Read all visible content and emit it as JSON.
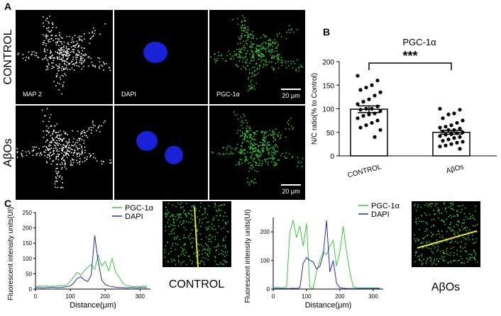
{
  "panels": {
    "a": "A",
    "b": "B",
    "c": "C"
  },
  "microscopy": {
    "rows": [
      "CONTROL",
      "AβOs"
    ],
    "channels": [
      "MAP 2",
      "DAPI",
      "PGC-1α"
    ],
    "scale_bar": "20 μm"
  },
  "profile_images": [
    "CONTROL",
    "AβOs"
  ],
  "chart_data": [
    {
      "type": "bar",
      "title": "PGC-1α",
      "y_label": "N/C ratio(% to Control)",
      "categories": [
        "CONTROL",
        "AβOs"
      ],
      "values": [
        99,
        50
      ],
      "errors": [
        7,
        4
      ],
      "points": [
        [
          170,
          160,
          150,
          145,
          140,
          135,
          128,
          120,
          115,
          110,
          105,
          100,
          100,
          98,
          95,
          90,
          88,
          85,
          80,
          75,
          70,
          65,
          60,
          55,
          40
        ],
        [
          100,
          98,
          90,
          88,
          80,
          75,
          70,
          65,
          62,
          60,
          58,
          55,
          55,
          52,
          50,
          48,
          46,
          45,
          42,
          40,
          38,
          35,
          32,
          30,
          28,
          25,
          22,
          20,
          15
        ]
      ],
      "annotation": "***",
      "color": "#000000",
      "ylim": [
        0,
        200
      ],
      "yticks": [
        0,
        50,
        100,
        150,
        200
      ]
    },
    {
      "type": "line",
      "x_label": "Distance(μm)",
      "y_label": "Fluorescent intensity units(UI)",
      "x": [
        0,
        10,
        20,
        30,
        40,
        50,
        60,
        70,
        80,
        90,
        100,
        110,
        120,
        130,
        140,
        150,
        160,
        170,
        180,
        190,
        200,
        210,
        220,
        230,
        240,
        250,
        260,
        270,
        280,
        290,
        300,
        310,
        320
      ],
      "series": [
        {
          "name": "PGC-1α",
          "color": "#3cc83c",
          "values": [
            8,
            10,
            9,
            11,
            8,
            10,
            9,
            12,
            10,
            14,
            25,
            40,
            55,
            45,
            60,
            70,
            80,
            65,
            110,
            75,
            90,
            60,
            100,
            55,
            40,
            20,
            12,
            10,
            8,
            9,
            8,
            10,
            8
          ]
        },
        {
          "name": "DAPI",
          "color": "#2a2aa8",
          "values": [
            5,
            5,
            4,
            5,
            5,
            6,
            5,
            5,
            6,
            8,
            10,
            20,
            35,
            40,
            30,
            25,
            45,
            175,
            90,
            30,
            15,
            10,
            8,
            6,
            5,
            5,
            4,
            5,
            5,
            4,
            5,
            5,
            4
          ]
        }
      ],
      "xlim": [
        0,
        330
      ],
      "xticks": [
        0,
        100,
        200,
        300
      ],
      "ylim": [
        0,
        250
      ],
      "yticks": [
        0,
        50,
        100,
        150,
        200,
        250
      ]
    },
    {
      "type": "line",
      "x_label": "Distance(μm)",
      "y_label": "Fluorescent intensity units(UI)",
      "x": [
        0,
        10,
        20,
        30,
        40,
        50,
        60,
        70,
        80,
        90,
        100,
        110,
        120,
        130,
        140,
        150,
        160,
        170,
        180,
        190,
        200,
        210,
        220,
        230,
        240,
        250,
        260,
        270,
        280,
        290,
        300,
        310,
        320
      ],
      "series": [
        {
          "name": "PGC-1α",
          "color": "#3cc83c",
          "values": [
            5,
            6,
            5,
            4,
            8,
            200,
            240,
            180,
            220,
            150,
            230,
            5,
            3,
            60,
            100,
            130,
            120,
            150,
            170,
            80,
            130,
            220,
            130,
            60,
            8,
            5,
            4,
            5,
            4,
            5,
            4,
            5,
            4
          ]
        },
        {
          "name": "DAPI",
          "color": "#2a2aa8",
          "values": [
            2,
            2,
            2,
            2,
            2,
            2,
            3,
            2,
            5,
            90,
            110,
            100,
            95,
            70,
            80,
            120,
            240,
            60,
            100,
            20,
            5,
            3,
            2,
            2,
            2,
            2,
            2,
            2,
            2,
            2,
            2,
            2,
            2
          ]
        }
      ],
      "xlim": [
        0,
        330
      ],
      "xticks": [
        0,
        100,
        200,
        300
      ],
      "ylim": [
        0,
        250
      ],
      "yticks": [
        0,
        100,
        200
      ]
    }
  ]
}
